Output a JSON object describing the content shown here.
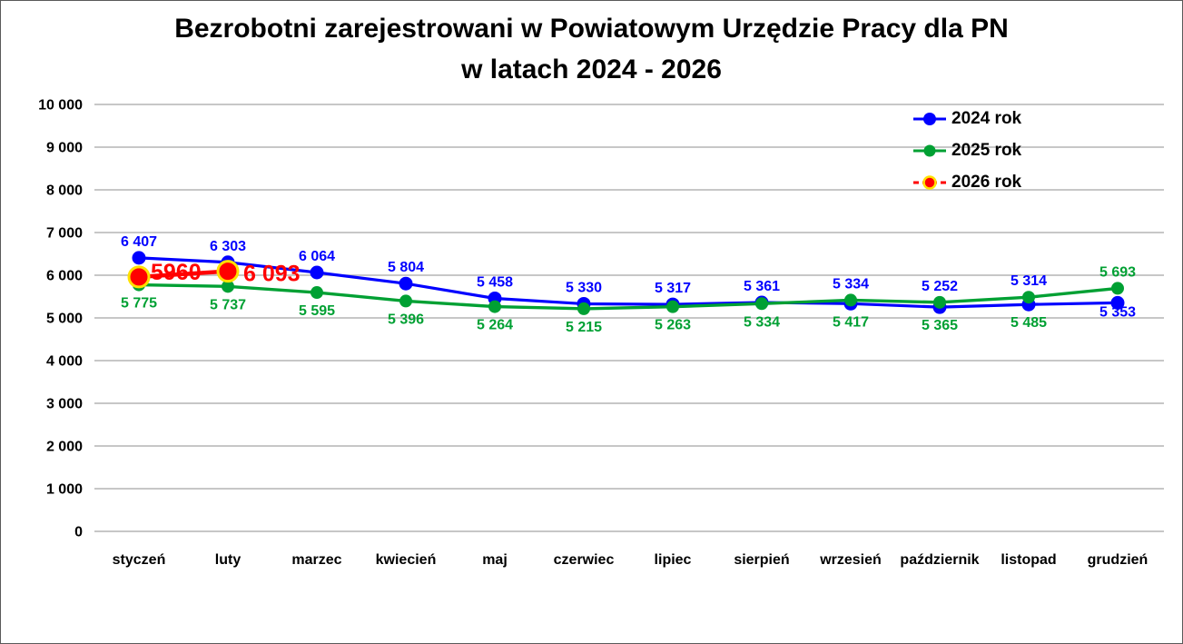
{
  "title": {
    "line1": "Bezrobotni zarejestrowani w Powiatowym Urzędzie Pracy dla PN",
    "line2": "w latach 2024 - 2026"
  },
  "chart_data": {
    "type": "line",
    "title": "Bezrobotni zarejestrowani w Powiatowym Urzędzie Pracy dla PN w latach 2024 - 2026",
    "categories": [
      "styczeń",
      "luty",
      "marzec",
      "kwiecień",
      "maj",
      "czerwiec",
      "lipiec",
      "sierpień",
      "wrzesień",
      "październik",
      "listopad",
      "grudzień"
    ],
    "series": [
      {
        "name": "2024 rok",
        "color": "#0000FF",
        "line_style": "solid",
        "marker": "circle",
        "values": [
          6407,
          6303,
          6064,
          5804,
          5458,
          5330,
          5317,
          5361,
          5334,
          5252,
          5314,
          5353
        ],
        "labels": [
          "6 407",
          "6 303",
          "6 064",
          "5 804",
          "5 458",
          "5 330",
          "5 317",
          "5 361",
          "5 334",
          "5 252",
          "5 314",
          "5 353"
        ],
        "label_sides": [
          "above",
          "above",
          "above",
          "above",
          "above",
          "above",
          "above",
          "above",
          "above",
          "above",
          "above",
          "below"
        ]
      },
      {
        "name": "2025 rok",
        "color": "#00A033",
        "line_style": "solid",
        "marker": "circle",
        "values": [
          5775,
          5737,
          5595,
          5396,
          5264,
          5215,
          5263,
          5334,
          5417,
          5365,
          5485,
          5693
        ],
        "labels": [
          "5 775",
          "5 737",
          "5 595",
          "5 396",
          "5 264",
          "5 215",
          "5 263",
          "5 334",
          "5 417",
          "5 365",
          "5 485",
          "5 693"
        ],
        "label_sides": [
          "below",
          "below",
          "below",
          "below",
          "below",
          "below",
          "below",
          "below",
          "below",
          "below",
          "below",
          "above"
        ]
      },
      {
        "name": "2026 rok",
        "color": "#FF0000",
        "marker_outline": "#FFE100",
        "line_style": "dashed",
        "marker": "circle",
        "values": [
          5960,
          6093,
          null,
          null,
          null,
          null,
          null,
          null,
          null,
          null,
          null,
          null
        ],
        "labels": [
          "5960",
          "6 093"
        ],
        "label_sides": [
          "right",
          "right"
        ]
      }
    ],
    "xlabel": "",
    "ylabel": "",
    "ylim": [
      0,
      10000
    ],
    "ytick_step": 1000,
    "ytick_labels": [
      "0",
      "1 000",
      "2 000",
      "3 000",
      "4 000",
      "5 000",
      "6 000",
      "7 000",
      "8 000",
      "9 000",
      "10 000"
    ],
    "grid": "horizontal",
    "gridline_color": "#BFBFBF",
    "legend_position": "top-right"
  }
}
